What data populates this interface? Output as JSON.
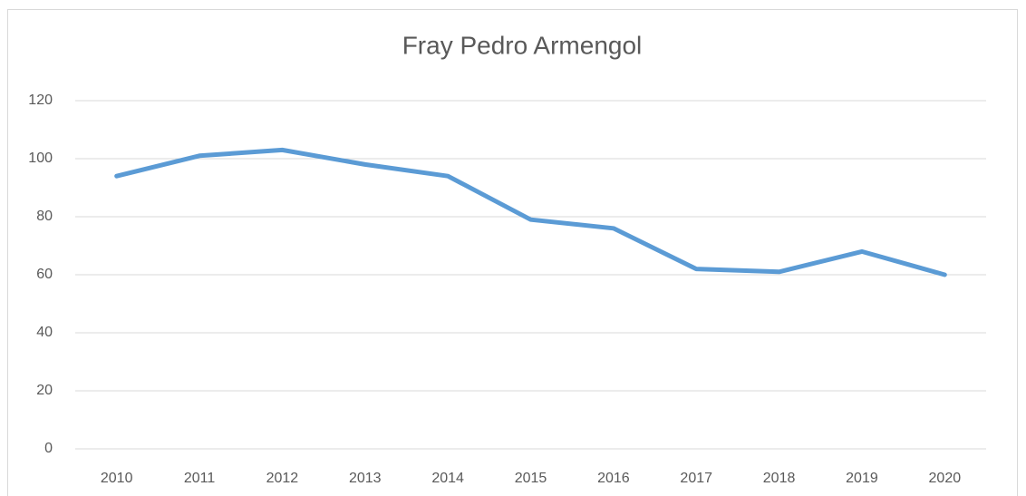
{
  "chart_data": {
    "type": "line",
    "title": "Fray Pedro Armengol",
    "categories": [
      "2010",
      "2011",
      "2012",
      "2013",
      "2014",
      "2015",
      "2016",
      "2017",
      "2018",
      "2019",
      "2020"
    ],
    "series": [
      {
        "name": "Fray Pedro Armengol",
        "color": "#5b9bd5",
        "values": [
          94,
          101,
          103,
          98,
          94,
          79,
          76,
          62,
          61,
          68,
          60
        ]
      }
    ],
    "ylim": [
      0,
      120
    ],
    "yticks": [
      0,
      20,
      40,
      60,
      80,
      100,
      120
    ],
    "grid": true
  }
}
